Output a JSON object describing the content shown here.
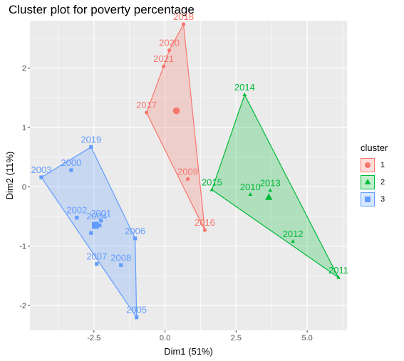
{
  "chart_data": {
    "type": "scatter",
    "title": "Cluster plot for poverty percentage",
    "xlabel": "Dim1 (51%)",
    "ylabel": "Dim2 (11%)",
    "xlim": [
      -4.75,
      6.4
    ],
    "ylim": [
      -2.42,
      2.8
    ],
    "xticks": [
      -2.5,
      0.0,
      2.5,
      5.0
    ],
    "xtick_labels": [
      "-2.5",
      "0.0",
      "2.5",
      "5.0"
    ],
    "yticks": [
      -2,
      -1,
      0,
      1,
      2
    ],
    "ytick_labels": [
      "-2",
      "-1",
      "0",
      "1",
      "2"
    ],
    "grid": true,
    "legend": {
      "title": "cluster",
      "position": "right",
      "labels": [
        "1",
        "2",
        "3"
      ]
    },
    "series": [
      {
        "name": "1",
        "color": "#F8766D",
        "shape": "circle",
        "points": [
          {
            "label": "2018",
            "x": 0.65,
            "y": 2.74
          },
          {
            "label": "2020",
            "x": 0.15,
            "y": 2.3
          },
          {
            "label": "2021",
            "x": -0.05,
            "y": 2.03
          },
          {
            "label": "2017",
            "x": -0.65,
            "y": 1.25
          },
          {
            "label": "2009",
            "x": 0.8,
            "y": 0.13
          },
          {
            "label": "2016",
            "x": 1.4,
            "y": -0.73
          }
        ],
        "center": {
          "x": 0.4,
          "y": 1.28
        }
      },
      {
        "name": "2",
        "color": "#00BA38",
        "shape": "triangle",
        "points": [
          {
            "label": "2014",
            "x": 2.8,
            "y": 1.55
          },
          {
            "label": "2015",
            "x": 1.65,
            "y": -0.05
          },
          {
            "label": "2010",
            "x": 3.0,
            "y": -0.13
          },
          {
            "label": "2013",
            "x": 3.7,
            "y": -0.06
          },
          {
            "label": "2012",
            "x": 4.5,
            "y": -0.92
          },
          {
            "label": "2011",
            "x": 6.1,
            "y": -1.53
          }
        ],
        "center": {
          "x": 3.65,
          "y": -0.18
        }
      },
      {
        "name": "3",
        "color": "#619CFF",
        "shape": "square",
        "points": [
          {
            "label": "2019",
            "x": -2.6,
            "y": 0.67
          },
          {
            "label": "2003",
            "x": -4.35,
            "y": 0.16
          },
          {
            "label": "2000",
            "x": -3.3,
            "y": 0.28
          },
          {
            "label": "2002",
            "x": -3.1,
            "y": -0.52
          },
          {
            "label": "2001",
            "x": -2.25,
            "y": -0.57
          },
          {
            "label": "2004",
            "x": -2.4,
            "y": -0.62
          },
          {
            "label": "",
            "x": -2.3,
            "y": -0.65
          },
          {
            "label": "",
            "x": -2.6,
            "y": -0.78
          },
          {
            "label": "2006",
            "x": -1.05,
            "y": -0.87
          },
          {
            "label": "2007",
            "x": -2.4,
            "y": -1.3
          },
          {
            "label": "2008",
            "x": -1.55,
            "y": -1.32
          },
          {
            "label": "2005",
            "x": -1.0,
            "y": -2.2
          }
        ],
        "center": {
          "x": -2.45,
          "y": -0.65
        }
      }
    ],
    "hulls": [
      {
        "cluster": "1",
        "labels": [
          "2018",
          "2016",
          "2017",
          "2021",
          "2020"
        ]
      },
      {
        "cluster": "2",
        "labels": [
          "2014",
          "2011",
          "2015"
        ]
      },
      {
        "cluster": "3",
        "labels": [
          "2019",
          "2006",
          "2005",
          "2003"
        ]
      }
    ]
  }
}
